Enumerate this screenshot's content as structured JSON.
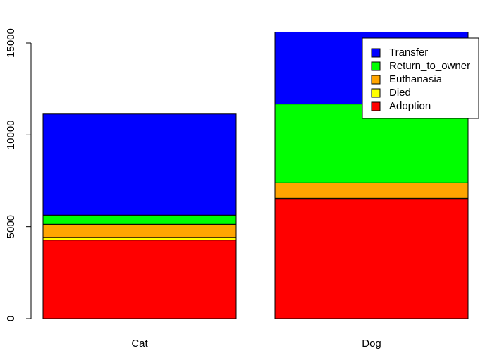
{
  "chart_data": {
    "type": "bar",
    "stacked": true,
    "categories": [
      "Cat",
      "Dog"
    ],
    "series": [
      {
        "name": "Adoption",
        "color": "#ff0000",
        "values": [
          4272,
          6497
        ]
      },
      {
        "name": "Died",
        "color": "#ffff00",
        "values": [
          147,
          50
        ]
      },
      {
        "name": "Euthanasia",
        "color": "#ffa500",
        "values": [
          710,
          845
        ]
      },
      {
        "name": "Return_to_owner",
        "color": "#00ff00",
        "values": [
          500,
          4286
        ]
      },
      {
        "name": "Transfer",
        "color": "#0000ff",
        "values": [
          5505,
          3917
        ]
      }
    ],
    "ylim": [
      0,
      15600
    ],
    "yticks": [
      0,
      5000,
      10000,
      15000
    ],
    "legend_position": "top-right",
    "grid": false,
    "title": "",
    "xlabel": "",
    "ylabel": ""
  }
}
